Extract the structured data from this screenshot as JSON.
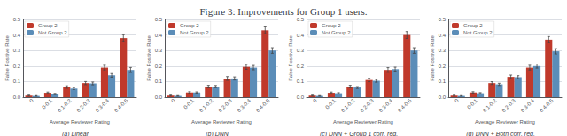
{
  "title": "Figure 3: Improvements for Group 1 users.",
  "chart_data": [
    {
      "type": "bar",
      "subtitle": "(a) Linear",
      "xlabel": "Average Reviewer Rating",
      "ylabel": "False Positive Rate",
      "categories": [
        "0",
        "0-0.1",
        "0.1-0.2",
        "0.2-0.3",
        "0.3-0.4",
        "0.4-0.5"
      ],
      "series": [
        {
          "name": "Group 2",
          "color": "#c0392b",
          "values": [
            0.01,
            0.028,
            0.065,
            0.09,
            0.19,
            0.38
          ],
          "errors": [
            0.003,
            0.005,
            0.008,
            0.01,
            0.015,
            0.022
          ]
        },
        {
          "name": "Not Group 2",
          "color": "#5b8db8",
          "values": [
            0.008,
            0.02,
            0.055,
            0.088,
            0.14,
            0.175
          ],
          "errors": [
            0.002,
            0.004,
            0.006,
            0.009,
            0.012,
            0.016
          ]
        }
      ],
      "ylim": [
        0,
        0.5
      ],
      "yticks": [
        {
          "value": 0,
          "label": "0.0"
        },
        0.1,
        0.2,
        0.3,
        0.4,
        0.5
      ],
      "grid": true,
      "legend": "upper left"
    },
    {
      "type": "bar",
      "subtitle": "(b) DNN",
      "xlabel": "Average Reviewer Rating",
      "ylabel": "False Positive Rate",
      "categories": [
        "0",
        "0-0.1",
        "0.1-0.2",
        "0.2-0.3",
        "0.3-0.4",
        "0.4-0.5"
      ],
      "series": [
        {
          "name": "Group 2",
          "color": "#c0392b",
          "values": [
            0.01,
            0.03,
            0.068,
            0.12,
            0.195,
            0.43
          ],
          "errors": [
            0.003,
            0.005,
            0.008,
            0.012,
            0.016,
            0.022
          ]
        },
        {
          "name": "Not Group 2",
          "color": "#5b8db8",
          "values": [
            0.008,
            0.03,
            0.068,
            0.12,
            0.19,
            0.3
          ],
          "errors": [
            0.002,
            0.004,
            0.007,
            0.01,
            0.014,
            0.018
          ]
        }
      ],
      "ylim": [
        0,
        0.5
      ],
      "yticks": [
        {
          "value": 0,
          "label": "0.0"
        },
        0.1,
        0.2,
        0.3,
        0.4,
        0.5
      ],
      "grid": true,
      "legend": "upper left"
    },
    {
      "type": "bar",
      "subtitle": "(c) DNN + Group 1 corr. reg.",
      "xlabel": "Average Reviewer Rating",
      "ylabel": "False Positive Rate",
      "categories": [
        "0",
        "0-0.1",
        "0.1-0.2",
        "0.2-0.3",
        "0.3-0.4",
        "0.4-0.5"
      ],
      "series": [
        {
          "name": "Group 2",
          "color": "#c0392b",
          "values": [
            0.01,
            0.028,
            0.068,
            0.11,
            0.175,
            0.4
          ],
          "errors": [
            0.003,
            0.005,
            0.008,
            0.011,
            0.015,
            0.022
          ]
        },
        {
          "name": "Not Group 2",
          "color": "#5b8db8",
          "values": [
            0.008,
            0.025,
            0.062,
            0.105,
            0.18,
            0.3
          ],
          "errors": [
            0.002,
            0.004,
            0.006,
            0.009,
            0.013,
            0.018
          ]
        }
      ],
      "ylim": [
        0,
        0.5
      ],
      "yticks": [
        {
          "value": 0,
          "label": "0.0"
        },
        0.1,
        0.2,
        0.3,
        0.4,
        0.5
      ],
      "grid": true,
      "legend": "upper left"
    },
    {
      "type": "bar",
      "subtitle": "(d) DNN + Both corr. reg.",
      "xlabel": "Average Reviewer Rating",
      "ylabel": "False Positive Rate",
      "categories": [
        "0",
        "0-0.1",
        "0.1-0.2",
        "0.2-0.3",
        "0.3-0.4",
        "0.4-0.5"
      ],
      "series": [
        {
          "name": "Group 2",
          "color": "#c0392b",
          "values": [
            0.01,
            0.03,
            0.09,
            0.13,
            0.19,
            0.37
          ],
          "errors": [
            0.003,
            0.005,
            0.009,
            0.012,
            0.015,
            0.02
          ]
        },
        {
          "name": "Not Group 2",
          "color": "#5b8db8",
          "values": [
            0.008,
            0.025,
            0.082,
            0.128,
            0.2,
            0.295
          ],
          "errors": [
            0.002,
            0.004,
            0.007,
            0.01,
            0.013,
            0.017
          ]
        }
      ],
      "ylim": [
        0,
        0.5
      ],
      "yticks": [
        {
          "value": 0,
          "label": "0.0"
        },
        0.1,
        0.2,
        0.3,
        0.4,
        0.5
      ],
      "grid": true,
      "legend": "upper left"
    }
  ]
}
